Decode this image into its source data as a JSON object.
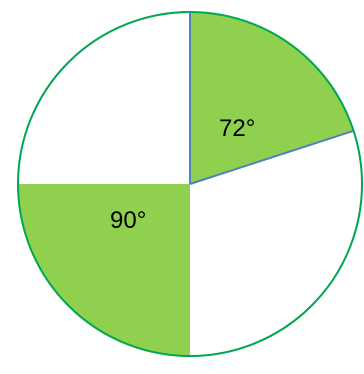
{
  "diagram": {
    "sectors": [
      {
        "name": "top-right",
        "start_deg": 0,
        "angle_deg": 72,
        "shaded": true,
        "label": "72°"
      },
      {
        "name": "right",
        "start_deg": 72,
        "angle_deg": 108,
        "shaded": false,
        "label": ""
      },
      {
        "name": "bottom-left",
        "start_deg": 180,
        "angle_deg": 90,
        "shaded": true,
        "label": "90°"
      },
      {
        "name": "top-left",
        "start_deg": 270,
        "angle_deg": 90,
        "shaded": false,
        "label": ""
      }
    ],
    "colors": {
      "fill": "#8fd14f",
      "outline": "#00a651",
      "radius_line": "#4f81bd",
      "background": "#ffffff"
    }
  }
}
